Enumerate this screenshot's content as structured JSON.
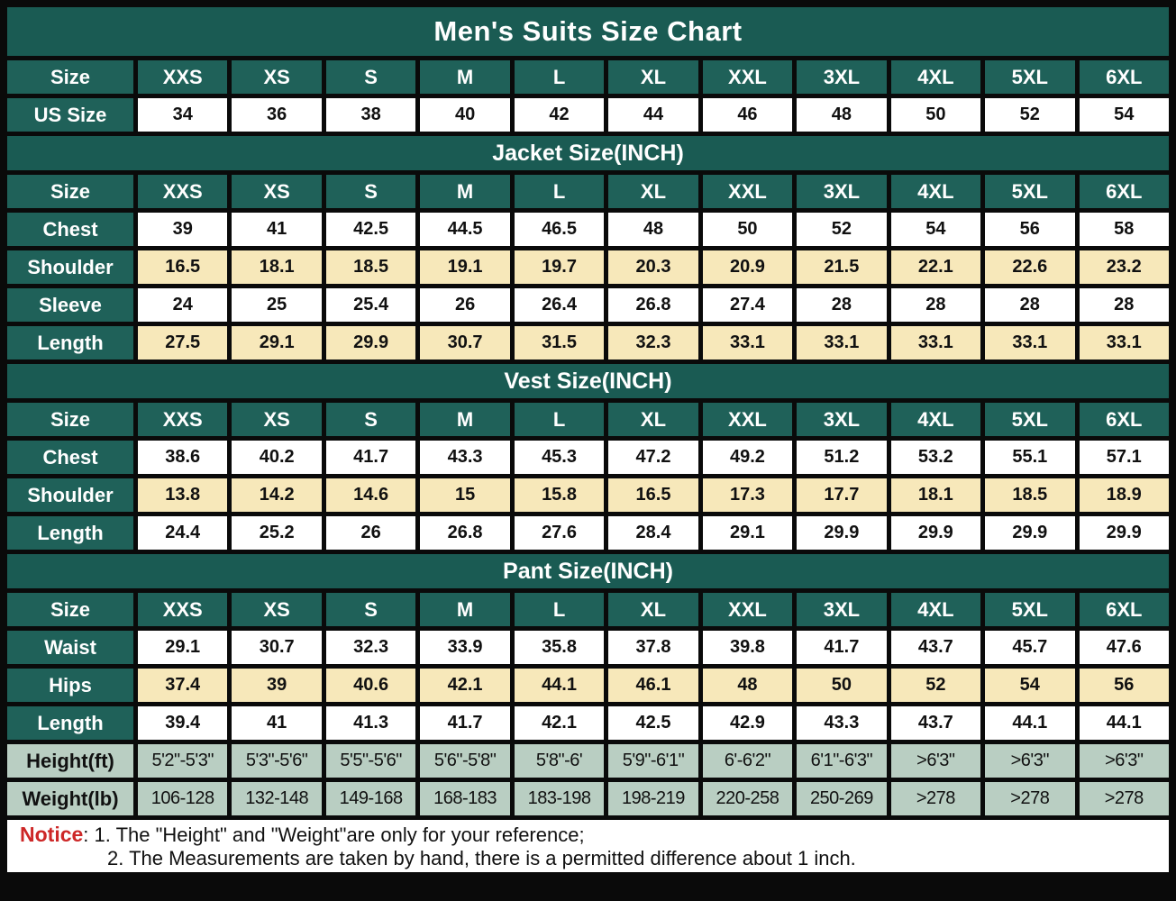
{
  "title": "Men's Suits Size Chart",
  "colors": {
    "frame_black": "#0a0a0a",
    "header_teal": "#1a5b53",
    "cell_teal": "#1f6159",
    "cream_row": "#f7e8ba",
    "mint_row": "#b9cec2",
    "notice_red": "#cd2727",
    "white": "#ffffff"
  },
  "size_labels": [
    "XXS",
    "XS",
    "S",
    "M",
    "L",
    "XL",
    "XXL",
    "3XL",
    "4XL",
    "5XL",
    "6XL"
  ],
  "table": {
    "blocks": [
      {
        "type": "row",
        "variant": "size-header",
        "label": "Size",
        "cells": [
          "XXS",
          "XS",
          "S",
          "M",
          "L",
          "XL",
          "XXL",
          "3XL",
          "4XL",
          "5XL",
          "6XL"
        ]
      },
      {
        "type": "row",
        "variant": "plain",
        "label": "US Size",
        "cells": [
          "34",
          "36",
          "38",
          "40",
          "42",
          "44",
          "46",
          "48",
          "50",
          "52",
          "54"
        ]
      },
      {
        "type": "section",
        "text": "Jacket Size(INCH)"
      },
      {
        "type": "row",
        "variant": "size-header",
        "label": "Size",
        "cells": [
          "XXS",
          "XS",
          "S",
          "M",
          "L",
          "XL",
          "XXL",
          "3XL",
          "4XL",
          "5XL",
          "6XL"
        ]
      },
      {
        "type": "row",
        "variant": "plain",
        "label": "Chest",
        "cells": [
          "39",
          "41",
          "42.5",
          "44.5",
          "46.5",
          "48",
          "50",
          "52",
          "54",
          "56",
          "58"
        ]
      },
      {
        "type": "row",
        "variant": "cream",
        "label": "Shoulder",
        "cells": [
          "16.5",
          "18.1",
          "18.5",
          "19.1",
          "19.7",
          "20.3",
          "20.9",
          "21.5",
          "22.1",
          "22.6",
          "23.2"
        ]
      },
      {
        "type": "row",
        "variant": "plain",
        "label": "Sleeve",
        "cells": [
          "24",
          "25",
          "25.4",
          "26",
          "26.4",
          "26.8",
          "27.4",
          "28",
          "28",
          "28",
          "28"
        ]
      },
      {
        "type": "row",
        "variant": "cream",
        "label": "Length",
        "cells": [
          "27.5",
          "29.1",
          "29.9",
          "30.7",
          "31.5",
          "32.3",
          "33.1",
          "33.1",
          "33.1",
          "33.1",
          "33.1"
        ]
      },
      {
        "type": "section",
        "text": "Vest Size(INCH)"
      },
      {
        "type": "row",
        "variant": "size-header",
        "label": "Size",
        "cells": [
          "XXS",
          "XS",
          "S",
          "M",
          "L",
          "XL",
          "XXL",
          "3XL",
          "4XL",
          "5XL",
          "6XL"
        ]
      },
      {
        "type": "row",
        "variant": "plain",
        "label": "Chest",
        "cells": [
          "38.6",
          "40.2",
          "41.7",
          "43.3",
          "45.3",
          "47.2",
          "49.2",
          "51.2",
          "53.2",
          "55.1",
          "57.1"
        ]
      },
      {
        "type": "row",
        "variant": "cream",
        "label": "Shoulder",
        "cells": [
          "13.8",
          "14.2",
          "14.6",
          "15",
          "15.8",
          "16.5",
          "17.3",
          "17.7",
          "18.1",
          "18.5",
          "18.9"
        ]
      },
      {
        "type": "row",
        "variant": "plain",
        "label": "Length",
        "cells": [
          "24.4",
          "25.2",
          "26",
          "26.8",
          "27.6",
          "28.4",
          "29.1",
          "29.9",
          "29.9",
          "29.9",
          "29.9"
        ]
      },
      {
        "type": "section",
        "text": "Pant Size(INCH)"
      },
      {
        "type": "row",
        "variant": "size-header",
        "label": "Size",
        "cells": [
          "XXS",
          "XS",
          "S",
          "M",
          "L",
          "XL",
          "XXL",
          "3XL",
          "4XL",
          "5XL",
          "6XL"
        ]
      },
      {
        "type": "row",
        "variant": "plain",
        "label": "Waist",
        "cells": [
          "29.1",
          "30.7",
          "32.3",
          "33.9",
          "35.8",
          "37.8",
          "39.8",
          "41.7",
          "43.7",
          "45.7",
          "47.6"
        ]
      },
      {
        "type": "row",
        "variant": "cream",
        "label": "Hips",
        "cells": [
          "37.4",
          "39",
          "40.6",
          "42.1",
          "44.1",
          "46.1",
          "48",
          "50",
          "52",
          "54",
          "56"
        ]
      },
      {
        "type": "row",
        "variant": "plain",
        "label": "Length",
        "cells": [
          "39.4",
          "41",
          "41.3",
          "41.7",
          "42.1",
          "42.5",
          "42.9",
          "43.3",
          "43.7",
          "44.1",
          "44.1"
        ]
      },
      {
        "type": "row",
        "variant": "mint",
        "label": "Height(ft)",
        "cells": [
          "5'2\"-5'3\"",
          "5'3\"-5'6\"",
          "5'5\"-5'6\"",
          "5'6\"-5'8\"",
          "5'8\"-6'",
          "5'9\"-6'1\"",
          "6'-6'2\"",
          "6'1\"-6'3\"",
          ">6'3\"",
          ">6'3\"",
          ">6'3\""
        ]
      },
      {
        "type": "row",
        "variant": "mint",
        "label": "Weight(lb)",
        "cells": [
          "106-128",
          "132-148",
          "149-168",
          "168-183",
          "183-198",
          "198-219",
          "220-258",
          "250-269",
          ">278",
          ">278",
          ">278"
        ]
      }
    ]
  },
  "notice": {
    "label": "Notice",
    "line1": ": 1. The \"Height\" and \"Weight\"are only for your reference;",
    "line2": "2. The Measurements are taken by hand, there is a permitted difference about 1 inch."
  }
}
